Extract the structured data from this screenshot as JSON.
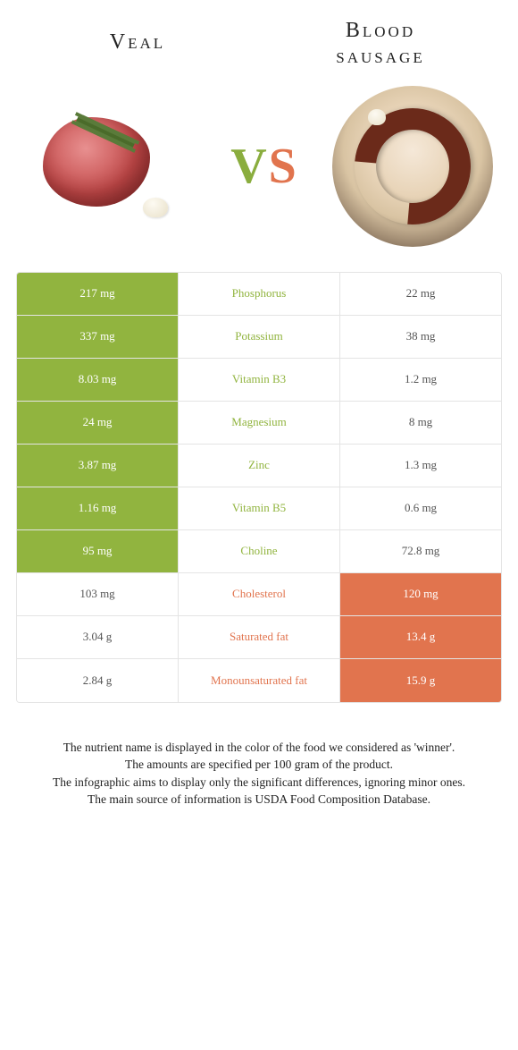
{
  "header": {
    "left_food": "Veal",
    "right_food_l1": "Blood",
    "right_food_l2": "sausage"
  },
  "vs": {
    "v": "V",
    "s": "S"
  },
  "colors": {
    "veal_win": "#91b43f",
    "bs_win": "#e1744e",
    "neutral_text": "#555555"
  },
  "rows": [
    {
      "nutrient": "Phosphorus",
      "left": "217 mg",
      "right": "22 mg",
      "winner": "left"
    },
    {
      "nutrient": "Potassium",
      "left": "337 mg",
      "right": "38 mg",
      "winner": "left"
    },
    {
      "nutrient": "Vitamin B3",
      "left": "8.03 mg",
      "right": "1.2 mg",
      "winner": "left"
    },
    {
      "nutrient": "Magnesium",
      "left": "24 mg",
      "right": "8 mg",
      "winner": "left"
    },
    {
      "nutrient": "Zinc",
      "left": "3.87 mg",
      "right": "1.3 mg",
      "winner": "left"
    },
    {
      "nutrient": "Vitamin B5",
      "left": "1.16 mg",
      "right": "0.6 mg",
      "winner": "left"
    },
    {
      "nutrient": "Choline",
      "left": "95 mg",
      "right": "72.8 mg",
      "winner": "left"
    },
    {
      "nutrient": "Cholesterol",
      "left": "103 mg",
      "right": "120 mg",
      "winner": "right"
    },
    {
      "nutrient": "Saturated fat",
      "left": "3.04 g",
      "right": "13.4 g",
      "winner": "right"
    },
    {
      "nutrient": "Monounsaturated fat",
      "left": "2.84 g",
      "right": "15.9 g",
      "winner": "right"
    }
  ],
  "footer": {
    "l1": "The nutrient name is displayed in the color of the food we considered as 'winner'.",
    "l2": "The amounts are specified per 100 gram of the product.",
    "l3": "The infographic aims to display only the significant differences, ignoring minor ones.",
    "l4": "The main source of information is USDA Food Composition Database."
  }
}
